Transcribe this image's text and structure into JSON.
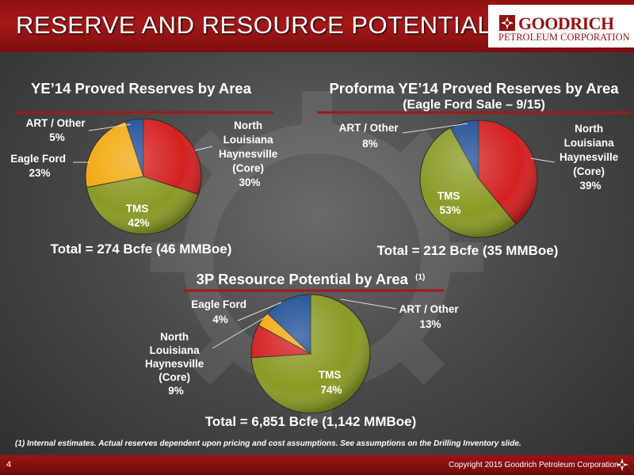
{
  "header": {
    "title": "RESERVE AND RESOURCE POTENTIAL"
  },
  "logo": {
    "name": "GOODRICH",
    "subtitle": "PETROLEUM CORPORATION",
    "icon": "goodrich-logo-icon"
  },
  "colors": {
    "north_louisiana": "#d42020",
    "tms": "#8a9a24",
    "eagle_ford": "#f2a90e",
    "art_other": "#1f4e96",
    "accent_red": "#8e1212"
  },
  "chart_data": [
    {
      "type": "pie",
      "title": "YE’14 Proved Reserves by Area",
      "subtitle": "",
      "total": "Total = 274 Bcfe (46 MMBoe)",
      "slices": [
        {
          "name": "North Louisiana Haynesville (Core)",
          "lines": [
            "North",
            "Louisiana",
            "Haynesville",
            "(Core)"
          ],
          "value": 30,
          "label": "30%"
        },
        {
          "name": "TMS",
          "lines": [
            "TMS"
          ],
          "value": 42,
          "label": "42%"
        },
        {
          "name": "Eagle Ford",
          "lines": [
            "Eagle Ford"
          ],
          "value": 23,
          "label": "23%"
        },
        {
          "name": "ART / Other",
          "lines": [
            "ART / Other"
          ],
          "value": 5,
          "label": "5%"
        }
      ]
    },
    {
      "type": "pie",
      "title": "Proforma YE’14 Proved Reserves by Area",
      "subtitle": "(Eagle Ford Sale – 9/15)",
      "total": "Total = 212 Bcfe (35 MMBoe)",
      "slices": [
        {
          "name": "North Louisiana Haynesville (Core)",
          "lines": [
            "North",
            "Louisiana",
            "Haynesville",
            "(Core)"
          ],
          "value": 39,
          "label": "39%"
        },
        {
          "name": "TMS",
          "lines": [
            "TMS"
          ],
          "value": 53,
          "label": "53%"
        },
        {
          "name": "ART / Other",
          "lines": [
            "ART / Other"
          ],
          "value": 8,
          "label": "8%"
        }
      ]
    },
    {
      "type": "pie",
      "title": "3P Resource Potential by Area",
      "title_note": "(1)",
      "subtitle": "",
      "total": "Total = 6,851 Bcfe (1,142 MMBoe)",
      "slices": [
        {
          "name": "TMS",
          "lines": [
            "TMS"
          ],
          "value": 74,
          "label": "74%"
        },
        {
          "name": "North Louisiana Haynesville (Core)",
          "lines": [
            "North",
            "Louisiana",
            "Haynesville",
            "(Core)"
          ],
          "value": 9,
          "label": "9%"
        },
        {
          "name": "Eagle Ford",
          "lines": [
            "Eagle Ford"
          ],
          "value": 4,
          "label": "4%"
        },
        {
          "name": "ART / Other",
          "lines": [
            "ART / Other"
          ],
          "value": 13,
          "label": "13%"
        }
      ]
    }
  ],
  "footnote": "(1) Internal estimates.  Actual reserves dependent upon pricing and cost assumptions.  See assumptions  on the Drilling Inventory slide.",
  "footer": {
    "page_number": "4",
    "copyright": "Copyright 2015 Goodrich Petroleum Corporation"
  }
}
